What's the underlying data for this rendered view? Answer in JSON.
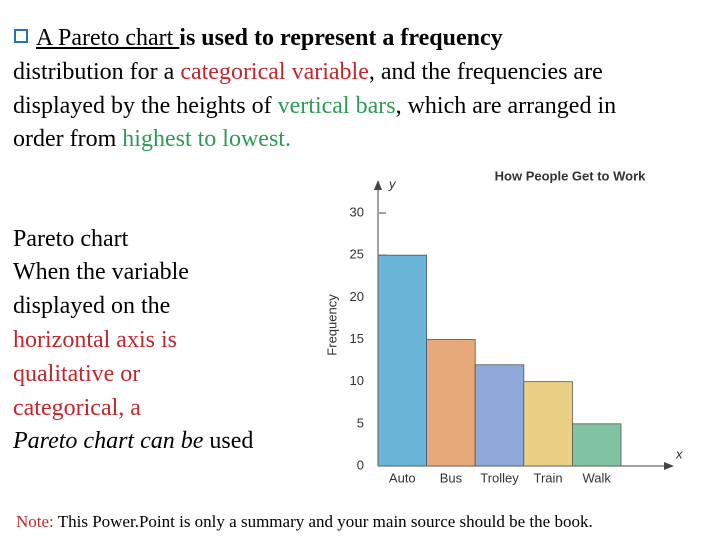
{
  "intro": {
    "lines": [
      [
        "A Pareto chart ",
        "is used to represent a frequency"
      ],
      [
        "distribution for a ",
        "categorical variable",
        ", and the frequencies are"
      ],
      [
        "displayed by the heights of ",
        "vertical bars",
        ", which are arranged in"
      ],
      [
        "order from ",
        "highest to lowest."
      ]
    ]
  },
  "side": {
    "heading": "Pareto chart",
    "lines": [
      [
        "When the variable"
      ],
      [
        "displayed on the"
      ],
      [
        "horizontal axis is"
      ],
      [
        "qualitative or"
      ],
      [
        "categorical, a"
      ],
      [
        "Pareto chart can be",
        " used"
      ]
    ]
  },
  "note": {
    "label": "Note:",
    "text": " This Power.Point is only a summary and your main source should be the book."
  },
  "chart_data": {
    "type": "bar",
    "title": "How People Get to Work",
    "y_label": "Frequency",
    "y_axis_name": "y",
    "x_axis_name": "x",
    "categories": [
      "Auto",
      "Bus",
      "Trolley",
      "Train",
      "Walk"
    ],
    "values": [
      25,
      15,
      12,
      10,
      5
    ],
    "colors": [
      "#6bb5d8",
      "#e8a97a",
      "#8eaadb",
      "#ead084",
      "#80c2a2"
    ],
    "ylim": [
      0,
      30
    ],
    "yticks": [
      0,
      5,
      10,
      15,
      20,
      25,
      30
    ]
  }
}
